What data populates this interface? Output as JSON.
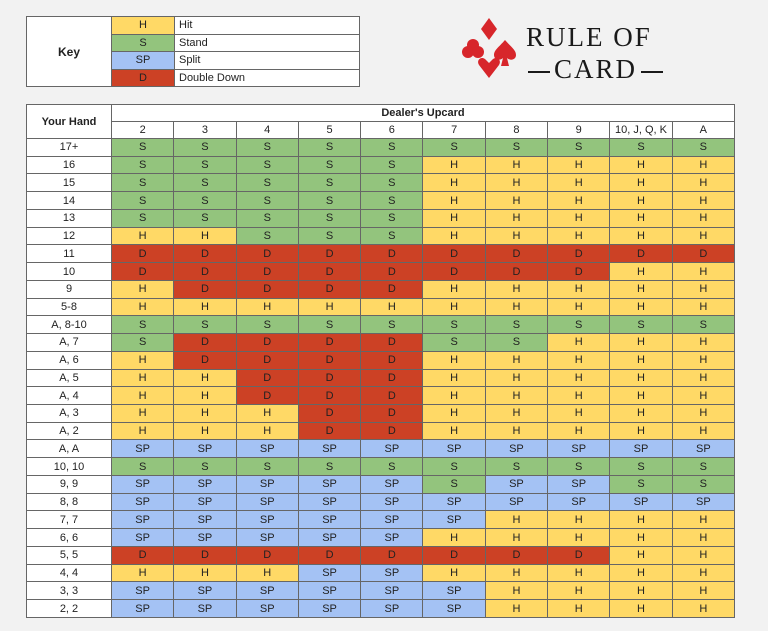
{
  "key": {
    "title": "Key",
    "items": [
      {
        "code": "H",
        "label": "Hit"
      },
      {
        "code": "S",
        "label": "Stand"
      },
      {
        "code": "SP",
        "label": "Split"
      },
      {
        "code": "D",
        "label": "Double Down"
      }
    ]
  },
  "logo": {
    "line1": "RULE OF",
    "line2": "CARD"
  },
  "colors": {
    "H": "#ffd966",
    "S": "#93c47d",
    "SP": "#a4c2f4",
    "D": "#cc4125"
  },
  "table": {
    "corner_label": "Your Hand",
    "dealer_label": "Dealer's Upcard",
    "dealer_cards": [
      "2",
      "3",
      "4",
      "5",
      "6",
      "7",
      "8",
      "9",
      "10, J, Q, K",
      "A"
    ],
    "rows": [
      {
        "hand": "17+",
        "moves": [
          "S",
          "S",
          "S",
          "S",
          "S",
          "S",
          "S",
          "S",
          "S",
          "S"
        ]
      },
      {
        "hand": "16",
        "moves": [
          "S",
          "S",
          "S",
          "S",
          "S",
          "H",
          "H",
          "H",
          "H",
          "H"
        ]
      },
      {
        "hand": "15",
        "moves": [
          "S",
          "S",
          "S",
          "S",
          "S",
          "H",
          "H",
          "H",
          "H",
          "H"
        ]
      },
      {
        "hand": "14",
        "moves": [
          "S",
          "S",
          "S",
          "S",
          "S",
          "H",
          "H",
          "H",
          "H",
          "H"
        ]
      },
      {
        "hand": "13",
        "moves": [
          "S",
          "S",
          "S",
          "S",
          "S",
          "H",
          "H",
          "H",
          "H",
          "H"
        ]
      },
      {
        "hand": "12",
        "moves": [
          "H",
          "H",
          "S",
          "S",
          "S",
          "H",
          "H",
          "H",
          "H",
          "H"
        ]
      },
      {
        "hand": "11",
        "moves": [
          "D",
          "D",
          "D",
          "D",
          "D",
          "D",
          "D",
          "D",
          "D",
          "D"
        ]
      },
      {
        "hand": "10",
        "moves": [
          "D",
          "D",
          "D",
          "D",
          "D",
          "D",
          "D",
          "D",
          "H",
          "H"
        ]
      },
      {
        "hand": "9",
        "moves": [
          "H",
          "D",
          "D",
          "D",
          "D",
          "H",
          "H",
          "H",
          "H",
          "H"
        ]
      },
      {
        "hand": "5-8",
        "moves": [
          "H",
          "H",
          "H",
          "H",
          "H",
          "H",
          "H",
          "H",
          "H",
          "H"
        ]
      },
      {
        "hand": "A, 8-10",
        "moves": [
          "S",
          "S",
          "S",
          "S",
          "S",
          "S",
          "S",
          "S",
          "S",
          "S"
        ]
      },
      {
        "hand": "A, 7",
        "moves": [
          "S",
          "D",
          "D",
          "D",
          "D",
          "S",
          "S",
          "H",
          "H",
          "H"
        ]
      },
      {
        "hand": "A, 6",
        "moves": [
          "H",
          "D",
          "D",
          "D",
          "D",
          "H",
          "H",
          "H",
          "H",
          "H"
        ]
      },
      {
        "hand": "A, 5",
        "moves": [
          "H",
          "H",
          "D",
          "D",
          "D",
          "H",
          "H",
          "H",
          "H",
          "H"
        ]
      },
      {
        "hand": "A, 4",
        "moves": [
          "H",
          "H",
          "D",
          "D",
          "D",
          "H",
          "H",
          "H",
          "H",
          "H"
        ]
      },
      {
        "hand": "A, 3",
        "moves": [
          "H",
          "H",
          "H",
          "D",
          "D",
          "H",
          "H",
          "H",
          "H",
          "H"
        ]
      },
      {
        "hand": "A, 2",
        "moves": [
          "H",
          "H",
          "H",
          "D",
          "D",
          "H",
          "H",
          "H",
          "H",
          "H"
        ]
      },
      {
        "hand": "A, A",
        "moves": [
          "SP",
          "SP",
          "SP",
          "SP",
          "SP",
          "SP",
          "SP",
          "SP",
          "SP",
          "SP"
        ]
      },
      {
        "hand": "10, 10",
        "moves": [
          "S",
          "S",
          "S",
          "S",
          "S",
          "S",
          "S",
          "S",
          "S",
          "S"
        ]
      },
      {
        "hand": "9, 9",
        "moves": [
          "SP",
          "SP",
          "SP",
          "SP",
          "SP",
          "S",
          "SP",
          "SP",
          "S",
          "S"
        ]
      },
      {
        "hand": "8, 8",
        "moves": [
          "SP",
          "SP",
          "SP",
          "SP",
          "SP",
          "SP",
          "SP",
          "SP",
          "SP",
          "SP"
        ]
      },
      {
        "hand": "7, 7",
        "moves": [
          "SP",
          "SP",
          "SP",
          "SP",
          "SP",
          "SP",
          "H",
          "H",
          "H",
          "H"
        ]
      },
      {
        "hand": "6, 6",
        "moves": [
          "SP",
          "SP",
          "SP",
          "SP",
          "SP",
          "H",
          "H",
          "H",
          "H",
          "H"
        ]
      },
      {
        "hand": "5, 5",
        "moves": [
          "D",
          "D",
          "D",
          "D",
          "D",
          "D",
          "D",
          "D",
          "H",
          "H"
        ]
      },
      {
        "hand": "4, 4",
        "moves": [
          "H",
          "H",
          "H",
          "SP",
          "SP",
          "H",
          "H",
          "H",
          "H",
          "H"
        ]
      },
      {
        "hand": "3, 3",
        "moves": [
          "SP",
          "SP",
          "SP",
          "SP",
          "SP",
          "SP",
          "H",
          "H",
          "H",
          "H"
        ]
      },
      {
        "hand": "2, 2",
        "moves": [
          "SP",
          "SP",
          "SP",
          "SP",
          "SP",
          "SP",
          "H",
          "H",
          "H",
          "H"
        ]
      }
    ]
  }
}
